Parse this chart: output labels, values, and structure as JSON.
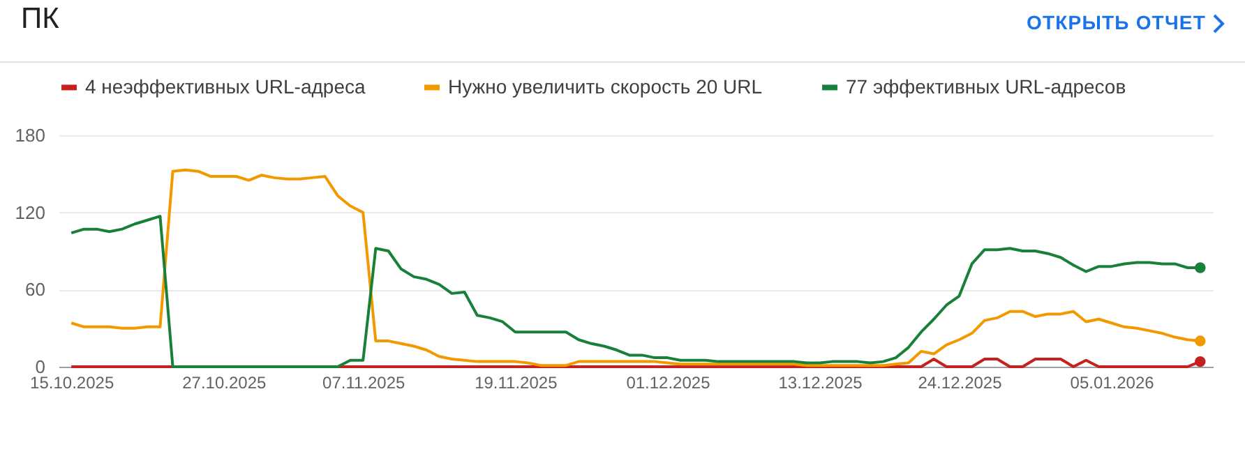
{
  "chart_data": {
    "type": "line",
    "title": "ПК",
    "annotations": [
      "ОТКРЫТЬ ОТЧЕТ"
    ],
    "x": [
      "2025-10-15",
      "2025-10-16",
      "2025-10-17",
      "2025-10-18",
      "2025-10-19",
      "2025-10-20",
      "2025-10-21",
      "2025-10-22",
      "2025-10-23",
      "2025-10-24",
      "2025-10-25",
      "2025-10-26",
      "2025-10-27",
      "2025-10-28",
      "2025-10-29",
      "2025-10-30",
      "2025-10-31",
      "2025-11-01",
      "2025-11-02",
      "2025-11-03",
      "2025-11-04",
      "2025-11-05",
      "2025-11-06",
      "2025-11-07",
      "2025-11-08",
      "2025-11-09",
      "2025-11-10",
      "2025-11-11",
      "2025-11-12",
      "2025-11-13",
      "2025-11-14",
      "2025-11-15",
      "2025-11-16",
      "2025-11-17",
      "2025-11-18",
      "2025-11-19",
      "2025-11-20",
      "2025-11-21",
      "2025-11-22",
      "2025-11-23",
      "2025-11-24",
      "2025-11-25",
      "2025-11-26",
      "2025-11-27",
      "2025-11-28",
      "2025-11-29",
      "2025-11-30",
      "2025-12-01",
      "2025-12-02",
      "2025-12-03",
      "2025-12-04",
      "2025-12-05",
      "2025-12-06",
      "2025-12-07",
      "2025-12-08",
      "2025-12-09",
      "2025-12-10",
      "2025-12-11",
      "2025-12-12",
      "2025-12-13",
      "2025-12-14",
      "2025-12-15",
      "2025-12-16",
      "2025-12-17",
      "2025-12-18",
      "2025-12-19",
      "2025-12-20",
      "2025-12-21",
      "2025-12-22",
      "2025-12-23",
      "2025-12-24",
      "2025-12-25",
      "2025-12-26",
      "2025-12-27",
      "2025-12-28",
      "2025-12-29",
      "2025-12-30",
      "2025-12-31",
      "2026-01-01",
      "2026-01-02",
      "2026-01-03",
      "2026-01-04",
      "2026-01-05",
      "2026-01-06",
      "2026-01-07",
      "2026-01-08",
      "2026-01-09",
      "2026-01-10",
      "2026-01-11",
      "2026-01-12"
    ],
    "series": [
      {
        "name": "4 неэффективных URL-адреса",
        "color": "#c5221f",
        "values": [
          0,
          0,
          0,
          0,
          0,
          0,
          0,
          0,
          0,
          0,
          0,
          0,
          0,
          0,
          0,
          0,
          0,
          0,
          0,
          0,
          0,
          0,
          0,
          0,
          0,
          0,
          0,
          0,
          0,
          0,
          0,
          0,
          0,
          0,
          0,
          0,
          0,
          0,
          0,
          0,
          0,
          0,
          0,
          0,
          0,
          0,
          0,
          0,
          0,
          0,
          0,
          0,
          0,
          0,
          0,
          0,
          0,
          0,
          0,
          0,
          0,
          0,
          0,
          0,
          0,
          0,
          0,
          0,
          6,
          0,
          0,
          0,
          6,
          6,
          0,
          0,
          6,
          6,
          6,
          0,
          5,
          0,
          0,
          0,
          0,
          0,
          0,
          0,
          0,
          4
        ]
      },
      {
        "name": "Нужно увеличить скорость 20 URL",
        "color": "#f29900",
        "values": [
          34,
          31,
          31,
          31,
          30,
          30,
          31,
          31,
          152,
          153,
          152,
          148,
          148,
          148,
          145,
          149,
          147,
          146,
          146,
          147,
          148,
          133,
          125,
          120,
          20,
          20,
          18,
          16,
          13,
          8,
          6,
          5,
          4,
          4,
          4,
          4,
          3,
          1,
          1,
          1,
          4,
          4,
          4,
          4,
          4,
          4,
          4,
          3,
          2,
          2,
          2,
          2,
          2,
          2,
          2,
          2,
          2,
          2,
          1,
          1,
          1,
          1,
          1,
          1,
          1,
          2,
          3,
          12,
          10,
          17,
          21,
          26,
          36,
          38,
          43,
          43,
          39,
          41,
          41,
          43,
          35,
          37,
          34,
          31,
          30,
          28,
          26,
          23,
          21,
          20
        ]
      },
      {
        "name": "77 эффективных URL-адресов",
        "color": "#188038",
        "values": [
          104,
          107,
          107,
          105,
          107,
          111,
          114,
          117,
          0,
          0,
          0,
          0,
          0,
          0,
          0,
          0,
          0,
          0,
          0,
          0,
          0,
          0,
          5,
          5,
          92,
          90,
          76,
          70,
          68,
          64,
          57,
          58,
          40,
          38,
          35,
          27,
          27,
          27,
          27,
          27,
          21,
          18,
          16,
          13,
          9,
          9,
          7,
          7,
          5,
          5,
          5,
          4,
          4,
          4,
          4,
          4,
          4,
          4,
          3,
          3,
          4,
          4,
          4,
          3,
          4,
          7,
          15,
          27,
          37,
          48,
          55,
          80,
          91,
          91,
          92,
          90,
          90,
          88,
          85,
          79,
          74,
          78,
          78,
          80,
          81,
          81,
          80,
          80,
          77,
          77
        ]
      }
    ],
    "xlim": [
      "2025-10-14",
      "2026-01-13"
    ],
    "xticks": [
      {
        "value": "2025-10-15",
        "label": "15.10.2025"
      },
      {
        "value": "2025-10-27",
        "label": "27.10.2025"
      },
      {
        "value": "2025-11-07",
        "label": "07.11.2025"
      },
      {
        "value": "2025-11-19",
        "label": "19.11.2025"
      },
      {
        "value": "2025-12-01",
        "label": "01.12.2025"
      },
      {
        "value": "2025-12-13",
        "label": "13.12.2025"
      },
      {
        "value": "2025-12-24",
        "label": "24.12.2025"
      },
      {
        "value": "2026-01-05",
        "label": "05.01.2026"
      }
    ],
    "ylim": [
      0,
      180
    ],
    "yticks": [
      0,
      60,
      120,
      180
    ],
    "grid": "y",
    "legend": "top left"
  }
}
